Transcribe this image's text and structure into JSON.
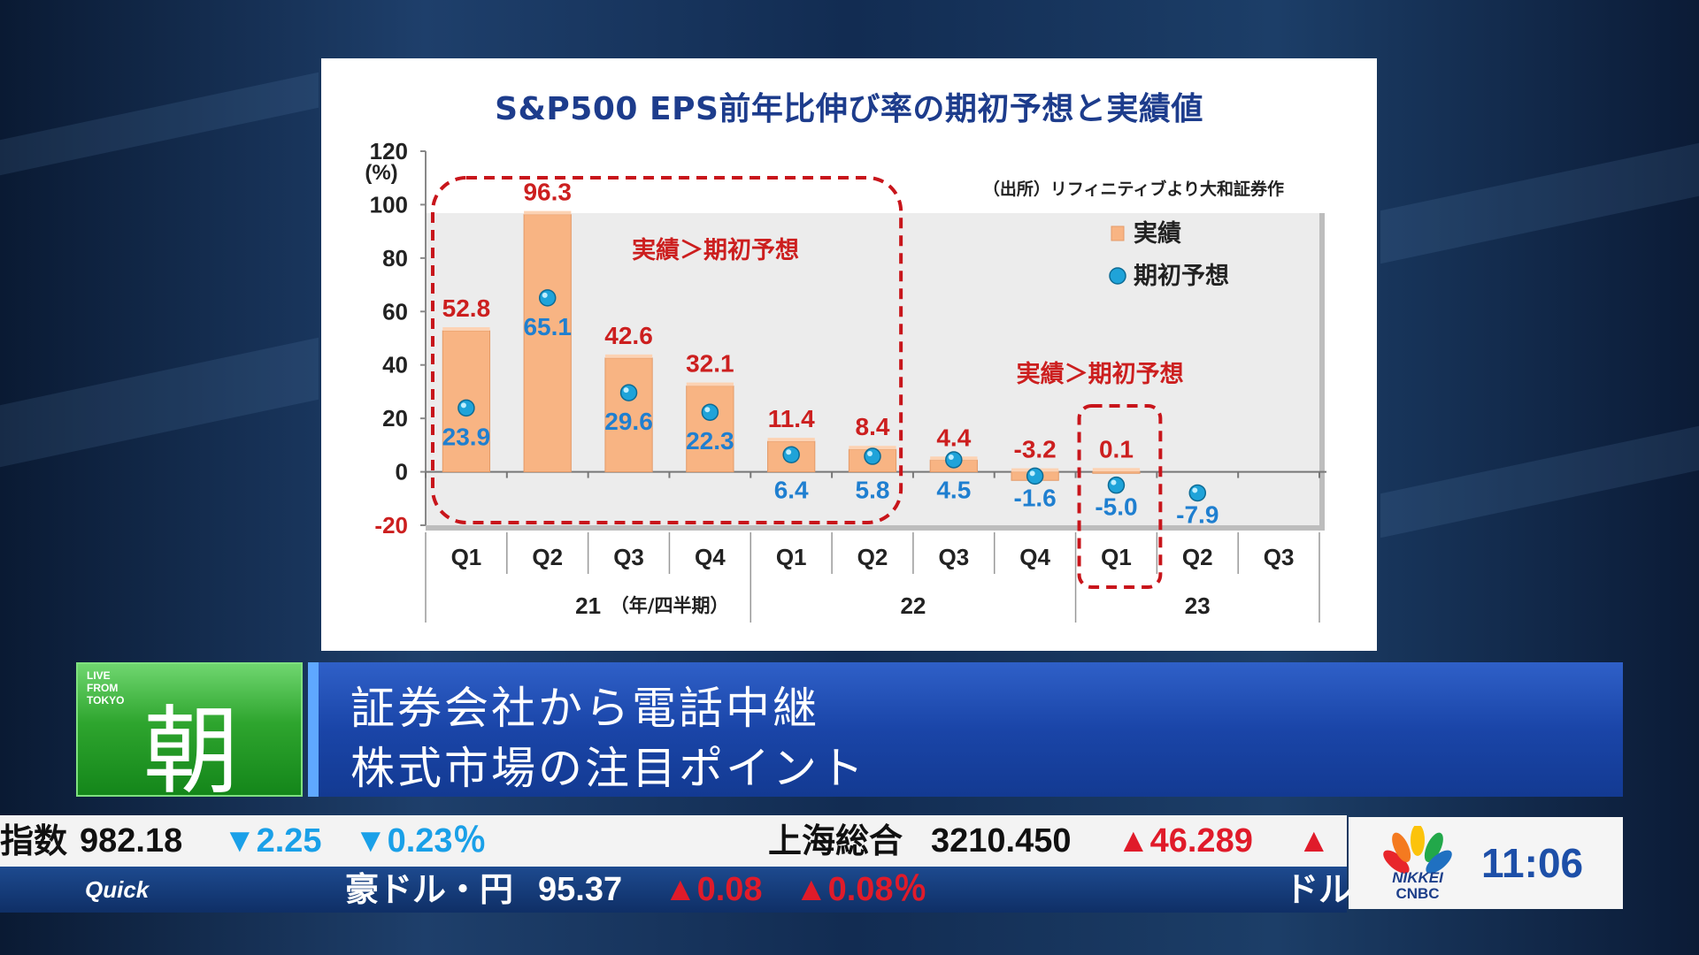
{
  "chart_data": {
    "type": "bar",
    "title": "S&P500 EPS前年比伸び率の期初予想と実績値",
    "ylabel": "(%)",
    "ylim": [
      -20,
      120
    ],
    "yticks": [
      -20,
      0,
      20,
      40,
      60,
      80,
      100,
      120
    ],
    "categories": [
      "Q1",
      "Q2",
      "Q3",
      "Q4",
      "Q1",
      "Q2",
      "Q3",
      "Q4",
      "Q1",
      "Q2",
      "Q3"
    ],
    "year_groups": [
      {
        "label": "21",
        "span": [
          0,
          3
        ]
      },
      {
        "label": "22",
        "span": [
          4,
          7
        ]
      },
      {
        "label": "23",
        "span": [
          8,
          10
        ]
      }
    ],
    "x_unit_label": "（年/四半期）",
    "source_note": "（出所）リフィニティブより大和証券作",
    "series": [
      {
        "name": "実績",
        "type": "bar",
        "color": "#f8b483",
        "values": [
          52.8,
          96.3,
          42.6,
          32.1,
          11.4,
          8.4,
          4.4,
          -3.2,
          0.1,
          null,
          null
        ],
        "labels": [
          "52.8",
          "96.3",
          "42.6",
          "32.1",
          "11.4",
          "8.4",
          "4.4",
          "-3.2",
          "0.1",
          null,
          null
        ]
      },
      {
        "name": "期初予想",
        "type": "scatter",
        "color": "#1fa3d9",
        "values": [
          23.9,
          65.1,
          29.6,
          22.3,
          6.4,
          5.8,
          4.5,
          -1.6,
          -5.0,
          -7.9,
          null
        ],
        "labels": [
          "23.9",
          "65.1",
          "29.6",
          "22.3",
          "6.4",
          "5.8",
          "4.5",
          "-1.6",
          "-5.0",
          "-7.9",
          null
        ]
      }
    ],
    "annotations": [
      "実績＞期初予想",
      "実績＞期初予想"
    ],
    "legend_position": "top-right",
    "grid": false
  },
  "lower_third": {
    "logo_small": "LIVE FROM TOKYO",
    "logo_kanji": "朝",
    "headline_line1": "証券会社から電話中継",
    "headline_line2": "株式市場の注目ポイント"
  },
  "ticker": {
    "top_items": [
      {
        "text": "指数"
      },
      {
        "text": "982.18"
      },
      {
        "text": "▼2.25",
        "dir": "down"
      },
      {
        "text": "▼0.23％",
        "dir": "down"
      },
      {
        "text": "上海総合"
      },
      {
        "text": "3210.450"
      },
      {
        "text": "▲46.289",
        "dir": "up"
      },
      {
        "text": "▲",
        "dir": "up"
      }
    ],
    "bottom_brand": "Quick",
    "bottom_items": [
      {
        "text": "豪ドル・円"
      },
      {
        "text": "95.37"
      },
      {
        "text": "▲0.08",
        "dir": "up"
      },
      {
        "text": "▲0.08％",
        "dir": "up"
      },
      {
        "text": "ドル"
      }
    ]
  },
  "clock": {
    "brand_top": "NIKKEI",
    "brand_bottom": "CNBC",
    "time": "11:06"
  },
  "colors": {
    "bar_fill": "#f8b483",
    "dot_fill": "#1fa3d9",
    "actual_label": "#cc1f1f",
    "forecast_label": "#1f7fd0",
    "title": "#1d3c8c",
    "dashed_box": "#c8151b"
  }
}
